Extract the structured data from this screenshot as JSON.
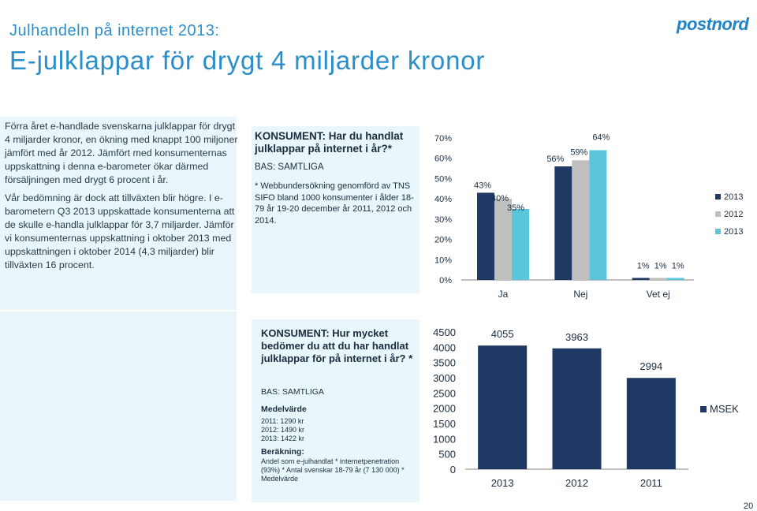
{
  "header": {
    "subtitle": "Julhandeln på internet 2013:",
    "title": "E-julklappar för drygt 4 miljarder kronor",
    "logo": "postnord"
  },
  "left_text": [
    "Förra året e-handlade svenskarna julklappar för drygt 4 miljarder kronor, en ökning med knappt 100 miljoner jämfört med år 2012. Jämfört med konsumenternas uppskattning i denna e-barometer ökar därmed försäljningen med drygt 6 procent i år.",
    "Vår bedömning är dock att tillväxten blir högre. I e-barometern Q3 2013 uppskattade konsumenterna att de skulle e-handla julklappar för 3,7 miljarder. Jämför vi konsumenternas uppskattning i oktober 2013 med uppskattningen i oktober 2014 (4,3 miljarder) blir tillväxten 16 procent."
  ],
  "box1": {
    "title": "KONSUMENT: Har du handlat julklappar på internet i år?*",
    "bas": "BAS: SAMTLIGA",
    "note": "* Webbundersökning genomförd av TNS SIFO bland 1000 konsumenter i ålder 18-79 år 19-20 december år 2011, 2012 och 2014."
  },
  "box2": {
    "title": "KONSUMENT: Hur mycket bedömer du att du har handlat julklappar för på internet i år? *",
    "bas": "BAS: SAMTLIGA",
    "medel_heading": "Medelvärde",
    "medel": [
      "2011: 1290 kr",
      "2012: 1490 kr",
      "2013: 1422 kr"
    ],
    "berakning_heading": "Beräkning:",
    "berakning": "Andel som e-julhandlat * internetpenetration (93%) * Antal svenskar 18-79 år (7 130 000) * Medelvärde"
  },
  "chart_data": [
    {
      "type": "bar",
      "categories": [
        "Ja",
        "Nej",
        "Vet ej"
      ],
      "series": [
        {
          "name": "2013",
          "values": [
            43,
            56,
            1
          ],
          "color": "#1f3864"
        },
        {
          "name": "2012",
          "values": [
            40,
            59,
            1
          ],
          "color": "#bfbfbf"
        },
        {
          "name": "2013",
          "values": [
            35,
            64,
            1
          ],
          "color": "#5bc5dc"
        }
      ],
      "data_labels": [
        [
          "43%",
          "56%",
          "1%"
        ],
        [
          "40%",
          "59%",
          "1%"
        ],
        [
          "35%",
          "64%",
          "1%"
        ]
      ],
      "yticks": [
        "0%",
        "10%",
        "20%",
        "30%",
        "40%",
        "50%",
        "60%",
        "70%"
      ],
      "ylim": [
        0,
        70
      ],
      "legend": "right"
    },
    {
      "type": "bar",
      "categories": [
        "2013",
        "2012",
        "2011"
      ],
      "values": [
        4055,
        3963,
        2994
      ],
      "data_labels": [
        "4055",
        "3963",
        "2994"
      ],
      "series_name": "MSEK",
      "color": "#1f3864",
      "yticks": [
        "0",
        "500",
        "1000",
        "1500",
        "2000",
        "2500",
        "3000",
        "3500",
        "4000",
        "4500"
      ],
      "ylim": [
        0,
        4500
      ],
      "legend": "right"
    }
  ],
  "page_number": "20"
}
